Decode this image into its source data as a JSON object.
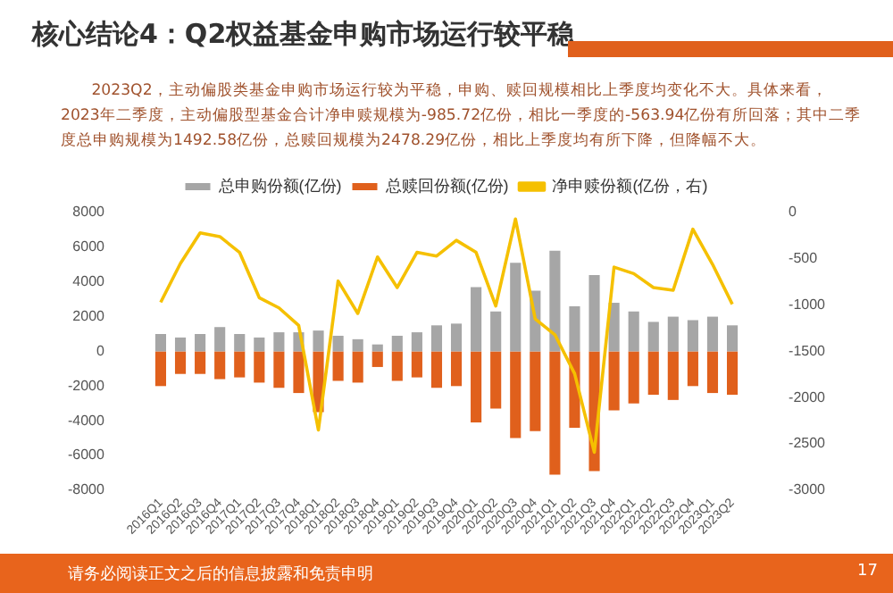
{
  "chart_data": {
    "type": "bar",
    "title": "核心结论4：Q2权益基金申购市场运行较平稳",
    "subtitle": "2023Q2，主动偏股类基金申购市场运行较为平稳，申购、赎回规模相比上季度均变化不大。具体来看，2023年二季度，主动偏股型基金合计净申赎规模为-985.72亿份，相比一季度的-563.94亿份有所回落；其中二季度总申购规模为1492.58亿份，总赎回规模为2478.29亿份，相比上季度均有所下降，但降幅不大。",
    "categories": [
      "2016Q1",
      "2016Q2",
      "2016Q3",
      "2016Q4",
      "2017Q1",
      "2017Q2",
      "2017Q3",
      "2017Q4",
      "2018Q1",
      "2018Q2",
      "2018Q3",
      "2018Q4",
      "2019Q1",
      "2019Q2",
      "2019Q3",
      "2019Q4",
      "2020Q1",
      "2020Q2",
      "2020Q3",
      "2020Q4",
      "2021Q1",
      "2021Q2",
      "2021Q3",
      "2021Q4",
      "2022Q1",
      "2022Q2",
      "2022Q3",
      "2022Q4",
      "2023Q1",
      "2023Q2"
    ],
    "stacked": true,
    "series": [
      {
        "name": "总申购份额(亿份)",
        "color": "#a6a6a6",
        "values": [
          1000,
          800,
          1000,
          1400,
          1000,
          800,
          1100,
          1100,
          1200,
          900,
          700,
          400,
          900,
          1100,
          1500,
          1600,
          3700,
          2300,
          5100,
          3500,
          5800,
          2600,
          4400,
          2800,
          2300,
          1700,
          2000,
          1800,
          2000,
          1500
        ]
      },
      {
        "name": "总赎回份额(亿份)",
        "color": "#e0601c",
        "values": [
          -2000,
          -1300,
          -1300,
          -1600,
          -1500,
          -1800,
          -2100,
          -2400,
          -3500,
          -1700,
          -1800,
          -900,
          -1700,
          -1500,
          -2100,
          -2000,
          -4100,
          -3300,
          -5000,
          -4600,
          -7100,
          -4400,
          -6900,
          -3400,
          -3000,
          -2500,
          -2800,
          -2000,
          -2400,
          -2500
        ]
      },
      {
        "name": "净申赎份额(亿份，右)",
        "type": "line",
        "axis": "y2",
        "color": "#f5c000",
        "values": [
          -970,
          -550,
          -220,
          -260,
          -430,
          -920,
          -1030,
          -1220,
          -2350,
          -740,
          -1090,
          -480,
          -810,
          -430,
          -470,
          -300,
          -430,
          -1010,
          -70,
          -1150,
          -1320,
          -1740,
          -2590,
          -590,
          -660,
          -810,
          -840,
          -180,
          -560,
          -990
        ]
      }
    ],
    "ylim": [
      -8000,
      8000
    ],
    "yticks": [
      -8000,
      -6000,
      -4000,
      -2000,
      0,
      2000,
      4000,
      6000,
      8000
    ],
    "y2lim": [
      -3000,
      0
    ],
    "y2ticks": [
      -3000,
      -2500,
      -2000,
      -1500,
      -1000,
      -500,
      0
    ],
    "grid": false,
    "legend": "top",
    "marker": "none",
    "annotations": [
      "请务必阅读正文之后的信息披露和免责申明",
      "17"
    ]
  }
}
